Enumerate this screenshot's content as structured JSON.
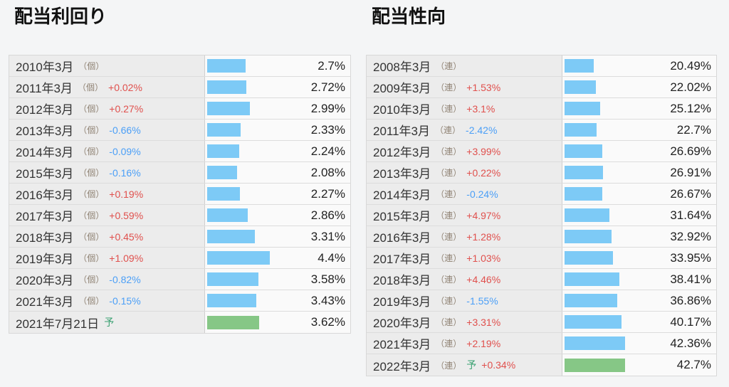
{
  "page": {
    "background": "#f4f5f6",
    "accent_bar_blue": "#7dcaf6",
    "accent_bar_green": "#86c786",
    "change_up_color": "#e0504d",
    "change_down_color": "#4b9ff7",
    "forecast_mark_color": "#38a070"
  },
  "chart_data": [
    {
      "type": "bar",
      "orientation": "horizontal",
      "title": "配当利回り",
      "bar_color": "#7dcaf6",
      "forecast_bar_color": "#86c786",
      "max_value": 4.4,
      "xlim": [
        0,
        4.4
      ],
      "categories": [
        "2010年3月",
        "2011年3月",
        "2012年3月",
        "2013年3月",
        "2014年3月",
        "2015年3月",
        "2016年3月",
        "2017年3月",
        "2018年3月",
        "2019年3月",
        "2020年3月",
        "2021年3月",
        "2021年7月21日"
      ],
      "values": [
        2.7,
        2.72,
        2.99,
        2.33,
        2.24,
        2.08,
        2.27,
        2.86,
        3.31,
        4.4,
        3.58,
        3.43,
        3.62
      ],
      "rows": [
        {
          "category": "2010年3月",
          "tag": "（個）",
          "forecast_mark": "",
          "change": "",
          "change_dir": "",
          "value": 2.7,
          "value_label": "2.7%"
        },
        {
          "category": "2011年3月",
          "tag": "（個）",
          "forecast_mark": "",
          "change": "+0.02%",
          "change_dir": "up",
          "value": 2.72,
          "value_label": "2.72%"
        },
        {
          "category": "2012年3月",
          "tag": "（個）",
          "forecast_mark": "",
          "change": "+0.27%",
          "change_dir": "up",
          "value": 2.99,
          "value_label": "2.99%"
        },
        {
          "category": "2013年3月",
          "tag": "（個）",
          "forecast_mark": "",
          "change": "-0.66%",
          "change_dir": "down",
          "value": 2.33,
          "value_label": "2.33%"
        },
        {
          "category": "2014年3月",
          "tag": "（個）",
          "forecast_mark": "",
          "change": "-0.09%",
          "change_dir": "down",
          "value": 2.24,
          "value_label": "2.24%"
        },
        {
          "category": "2015年3月",
          "tag": "（個）",
          "forecast_mark": "",
          "change": "-0.16%",
          "change_dir": "down",
          "value": 2.08,
          "value_label": "2.08%"
        },
        {
          "category": "2016年3月",
          "tag": "（個）",
          "forecast_mark": "",
          "change": "+0.19%",
          "change_dir": "up",
          "value": 2.27,
          "value_label": "2.27%"
        },
        {
          "category": "2017年3月",
          "tag": "（個）",
          "forecast_mark": "",
          "change": "+0.59%",
          "change_dir": "up",
          "value": 2.86,
          "value_label": "2.86%"
        },
        {
          "category": "2018年3月",
          "tag": "（個）",
          "forecast_mark": "",
          "change": "+0.45%",
          "change_dir": "up",
          "value": 3.31,
          "value_label": "3.31%"
        },
        {
          "category": "2019年3月",
          "tag": "（個）",
          "forecast_mark": "",
          "change": "+1.09%",
          "change_dir": "up",
          "value": 4.4,
          "value_label": "4.4%"
        },
        {
          "category": "2020年3月",
          "tag": "（個）",
          "forecast_mark": "",
          "change": "-0.82%",
          "change_dir": "down",
          "value": 3.58,
          "value_label": "3.58%"
        },
        {
          "category": "2021年3月",
          "tag": "（個）",
          "forecast_mark": "",
          "change": "-0.15%",
          "change_dir": "down",
          "value": 3.43,
          "value_label": "3.43%"
        },
        {
          "category": "2021年7月21日",
          "tag": "",
          "forecast_mark": "予",
          "change": "",
          "change_dir": "",
          "value": 3.62,
          "value_label": "3.62%"
        }
      ]
    },
    {
      "type": "bar",
      "orientation": "horizontal",
      "title": "配当性向",
      "bar_color": "#7dcaf6",
      "forecast_bar_color": "#86c786",
      "max_value": 42.7,
      "xlim": [
        0,
        42.7
      ],
      "categories": [
        "2008年3月",
        "2009年3月",
        "2010年3月",
        "2011年3月",
        "2012年3月",
        "2013年3月",
        "2014年3月",
        "2015年3月",
        "2016年3月",
        "2017年3月",
        "2018年3月",
        "2019年3月",
        "2020年3月",
        "2021年3月",
        "2022年3月"
      ],
      "values": [
        20.49,
        22.02,
        25.12,
        22.7,
        26.69,
        26.91,
        26.67,
        31.64,
        32.92,
        33.95,
        38.41,
        36.86,
        40.17,
        42.36,
        42.7
      ],
      "rows": [
        {
          "category": "2008年3月",
          "tag": "（連）",
          "forecast_mark": "",
          "change": "",
          "change_dir": "",
          "value": 20.49,
          "value_label": "20.49%"
        },
        {
          "category": "2009年3月",
          "tag": "（連）",
          "forecast_mark": "",
          "change": "+1.53%",
          "change_dir": "up",
          "value": 22.02,
          "value_label": "22.02%"
        },
        {
          "category": "2010年3月",
          "tag": "（連）",
          "forecast_mark": "",
          "change": "+3.1%",
          "change_dir": "up",
          "value": 25.12,
          "value_label": "25.12%"
        },
        {
          "category": "2011年3月",
          "tag": "（連）",
          "forecast_mark": "",
          "change": "-2.42%",
          "change_dir": "down",
          "value": 22.7,
          "value_label": "22.7%"
        },
        {
          "category": "2012年3月",
          "tag": "（連）",
          "forecast_mark": "",
          "change": "+3.99%",
          "change_dir": "up",
          "value": 26.69,
          "value_label": "26.69%"
        },
        {
          "category": "2013年3月",
          "tag": "（連）",
          "forecast_mark": "",
          "change": "+0.22%",
          "change_dir": "up",
          "value": 26.91,
          "value_label": "26.91%"
        },
        {
          "category": "2014年3月",
          "tag": "（連）",
          "forecast_mark": "",
          "change": "-0.24%",
          "change_dir": "down",
          "value": 26.67,
          "value_label": "26.67%"
        },
        {
          "category": "2015年3月",
          "tag": "（連）",
          "forecast_mark": "",
          "change": "+4.97%",
          "change_dir": "up",
          "value": 31.64,
          "value_label": "31.64%"
        },
        {
          "category": "2016年3月",
          "tag": "（連）",
          "forecast_mark": "",
          "change": "+1.28%",
          "change_dir": "up",
          "value": 32.92,
          "value_label": "32.92%"
        },
        {
          "category": "2017年3月",
          "tag": "（連）",
          "forecast_mark": "",
          "change": "+1.03%",
          "change_dir": "up",
          "value": 33.95,
          "value_label": "33.95%"
        },
        {
          "category": "2018年3月",
          "tag": "（連）",
          "forecast_mark": "",
          "change": "+4.46%",
          "change_dir": "up",
          "value": 38.41,
          "value_label": "38.41%"
        },
        {
          "category": "2019年3月",
          "tag": "（連）",
          "forecast_mark": "",
          "change": "-1.55%",
          "change_dir": "down",
          "value": 36.86,
          "value_label": "36.86%"
        },
        {
          "category": "2020年3月",
          "tag": "（連）",
          "forecast_mark": "",
          "change": "+3.31%",
          "change_dir": "up",
          "value": 40.17,
          "value_label": "40.17%"
        },
        {
          "category": "2021年3月",
          "tag": "（連）",
          "forecast_mark": "",
          "change": "+2.19%",
          "change_dir": "up",
          "value": 42.36,
          "value_label": "42.36%"
        },
        {
          "category": "2022年3月",
          "tag": "（連）",
          "forecast_mark": "予",
          "change": "+0.34%",
          "change_dir": "up",
          "value": 42.7,
          "value_label": "42.7%"
        }
      ]
    }
  ]
}
